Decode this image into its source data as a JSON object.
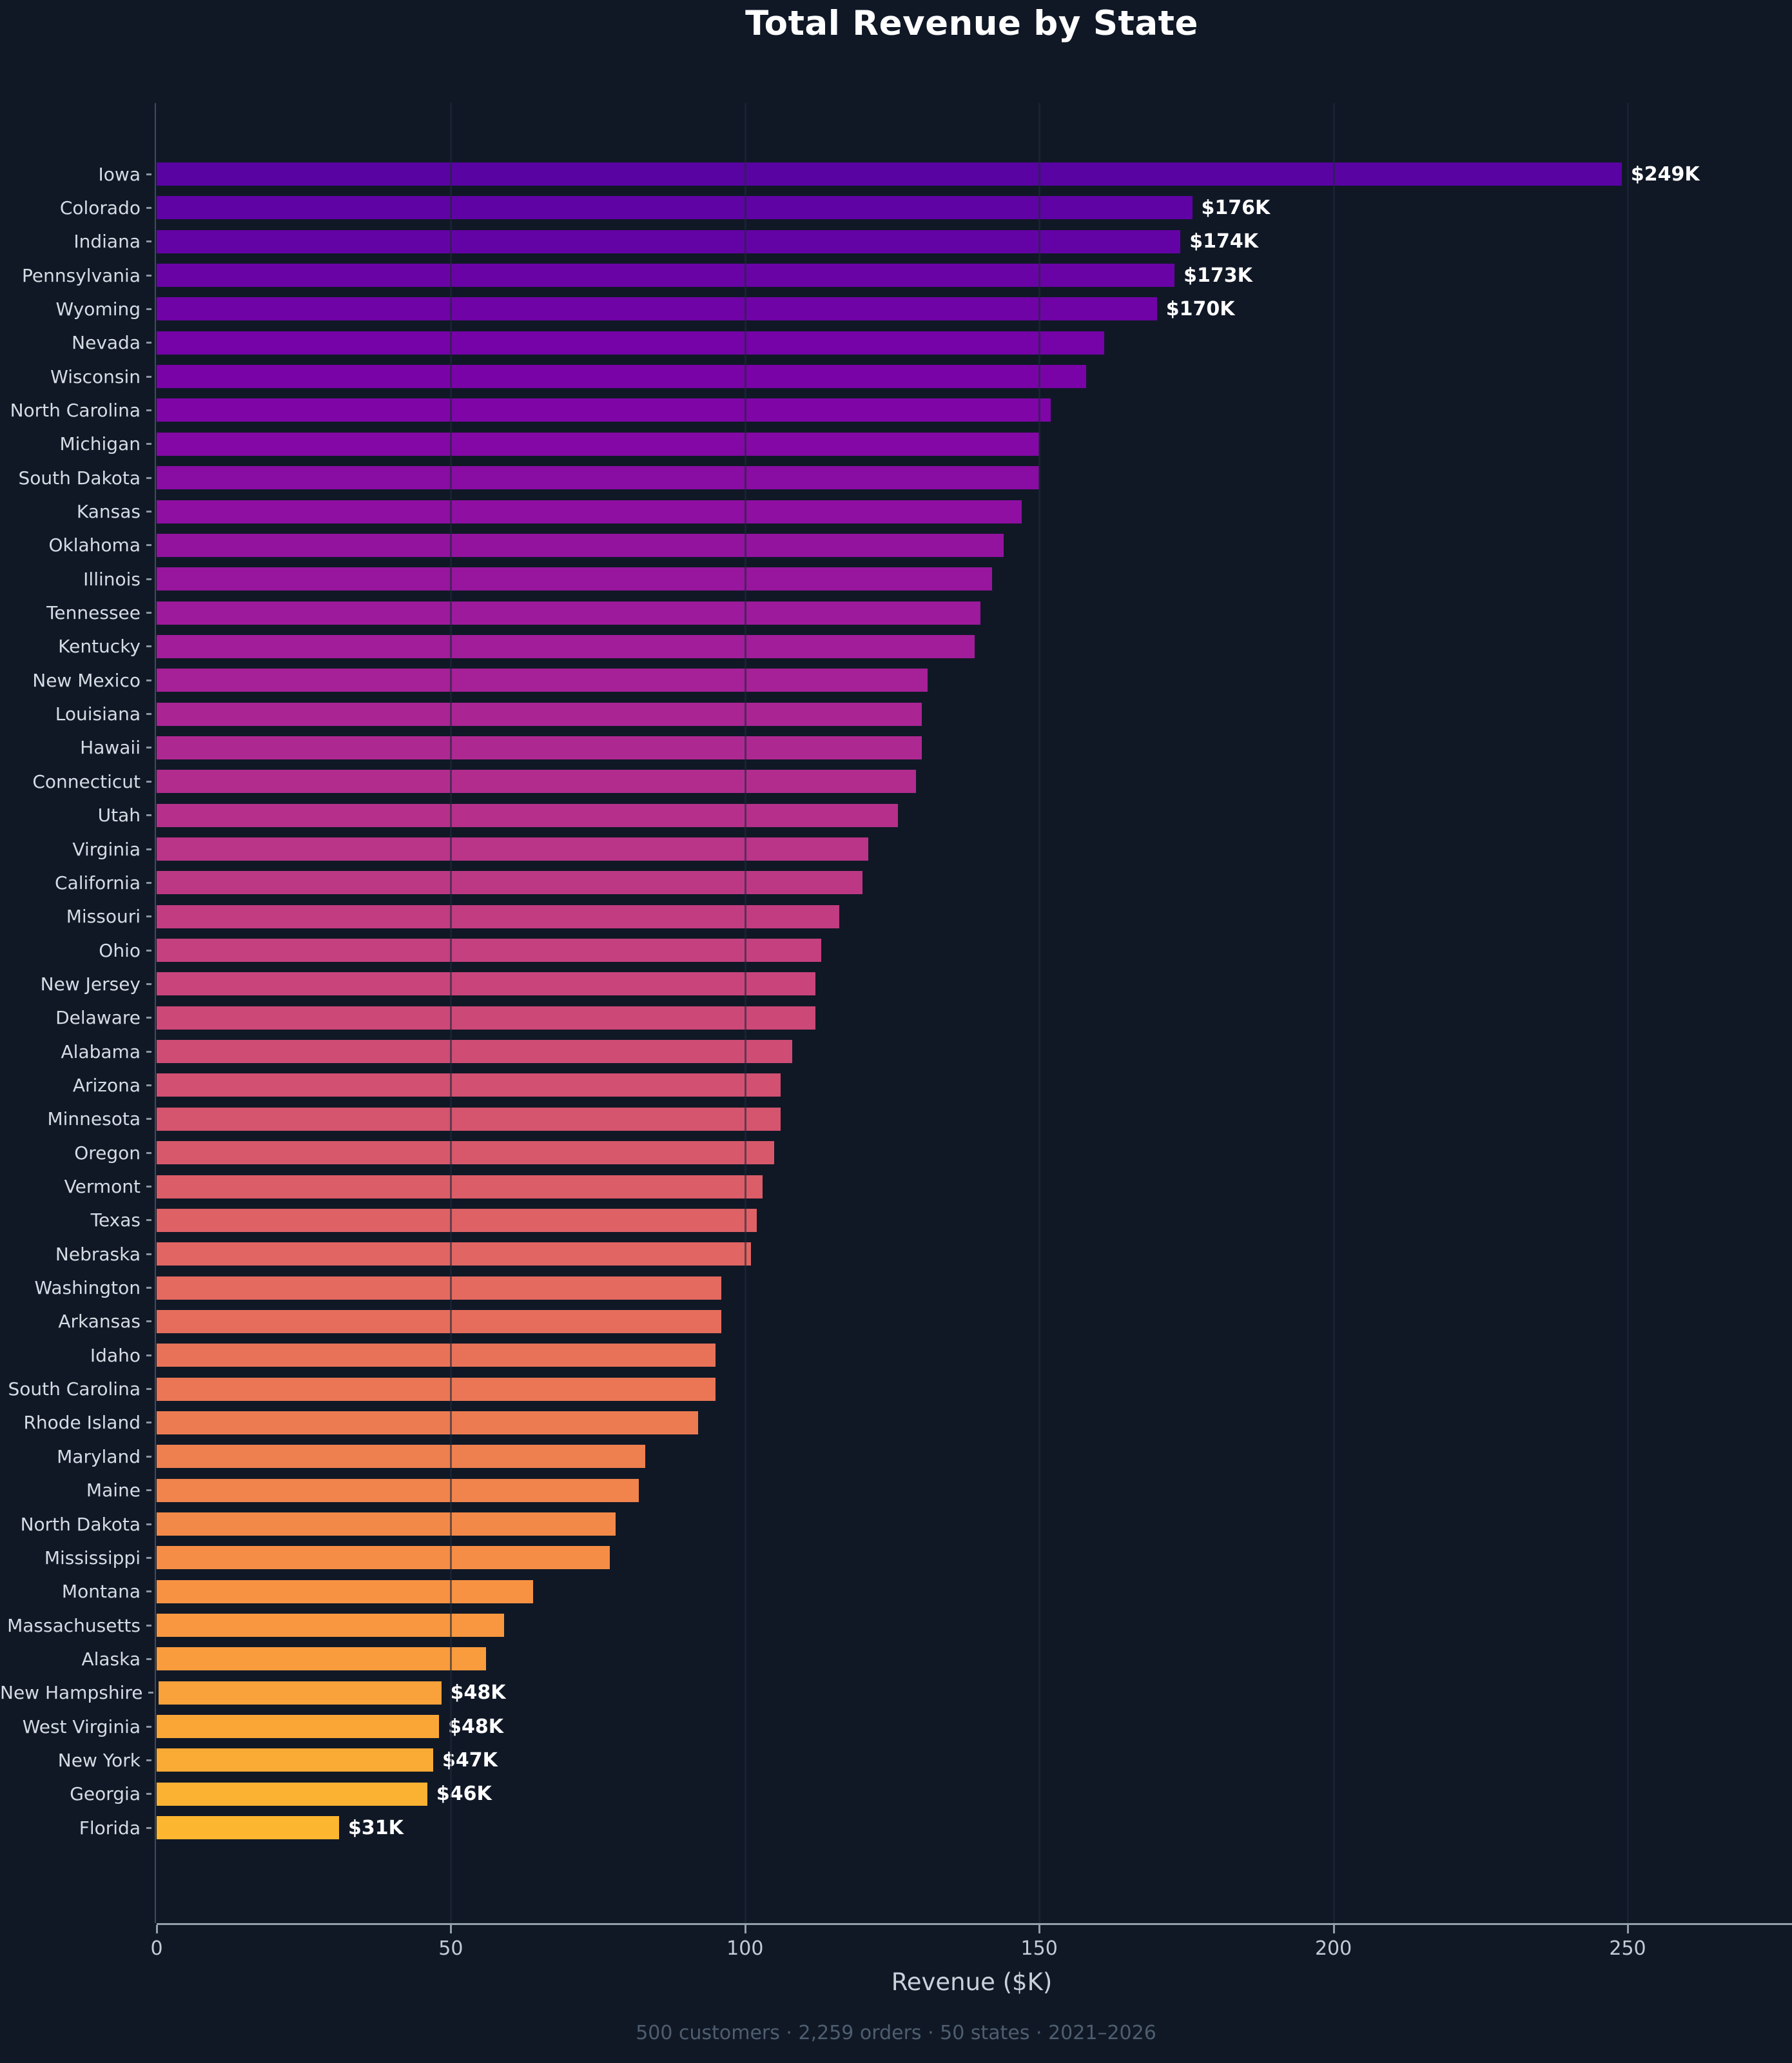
{
  "page": {
    "background": "#101826",
    "title": "Total Revenue by State",
    "footer": "500 customers · 2,259 orders · 50 states · 2021–2026"
  },
  "chart_data": {
    "type": "bar",
    "orientation": "horizontal",
    "title": "Total Revenue by State",
    "xlabel": "Revenue ($K)",
    "x_ticks": [
      0,
      50,
      100,
      150,
      200,
      250
    ],
    "xlim": [
      0,
      277
    ],
    "grid": true,
    "legend": false,
    "colors": {
      "background": "#101826",
      "axis": "#93a1ad",
      "grid": "rgba(30,41,59,0.62)",
      "state_label": "#d5dce4",
      "tick_label": "#c3ccd5",
      "value_label": "#ffffff",
      "footer_text": "#4e5e6f"
    },
    "bars": [
      {
        "state": "Iowa",
        "value_k": 249,
        "label": "$249K",
        "color": "#5903A3"
      },
      {
        "state": "Colorado",
        "value_k": 176,
        "label": "$176K",
        "color": "#5F03A4"
      },
      {
        "state": "Indiana",
        "value_k": 174,
        "label": "$174K",
        "color": "#6403A5"
      },
      {
        "state": "Pennsylvania",
        "value_k": 173,
        "label": "$173K",
        "color": "#6A03A5"
      },
      {
        "state": "Wyoming",
        "value_k": 170,
        "label": "$170K",
        "color": "#6F03A6"
      },
      {
        "state": "Nevada",
        "value_k": 161,
        "label": null,
        "color": "#7503A7"
      },
      {
        "state": "Wisconsin",
        "value_k": 158,
        "label": null,
        "color": "#7A03A8"
      },
      {
        "state": "North Carolina",
        "value_k": 152,
        "label": null,
        "color": "#7F05A7"
      },
      {
        "state": "Michigan",
        "value_k": 150,
        "label": null,
        "color": "#8408A5"
      },
      {
        "state": "South Dakota",
        "value_k": 150,
        "label": null,
        "color": "#890CA3"
      },
      {
        "state": "Kansas",
        "value_k": 147,
        "label": null,
        "color": "#8E0FA1"
      },
      {
        "state": "Oklahoma",
        "value_k": 144,
        "label": null,
        "color": "#93139F"
      },
      {
        "state": "Illinois",
        "value_k": 142,
        "label": null,
        "color": "#97169D"
      },
      {
        "state": "Tennessee",
        "value_k": 140,
        "label": null,
        "color": "#9C1A9B"
      },
      {
        "state": "Kentucky",
        "value_k": 139,
        "label": null,
        "color": "#A11D99"
      },
      {
        "state": "New Mexico",
        "value_k": 131,
        "label": null,
        "color": "#A62097"
      },
      {
        "state": "Louisiana",
        "value_k": 130,
        "label": null,
        "color": "#AA2494"
      },
      {
        "state": "Hawaii",
        "value_k": 130,
        "label": null,
        "color": "#AE2891"
      },
      {
        "state": "Connecticut",
        "value_k": 129,
        "label": null,
        "color": "#B22C8E"
      },
      {
        "state": "Utah",
        "value_k": 126,
        "label": null,
        "color": "#B6308B"
      },
      {
        "state": "Virginia",
        "value_k": 121,
        "label": null,
        "color": "#BA3488"
      },
      {
        "state": "California",
        "value_k": 120,
        "label": null,
        "color": "#BD3884"
      },
      {
        "state": "Missouri",
        "value_k": 116,
        "label": null,
        "color": "#C13C81"
      },
      {
        "state": "Ohio",
        "value_k": 113,
        "label": null,
        "color": "#C5407E"
      },
      {
        "state": "New Jersey",
        "value_k": 112,
        "label": null,
        "color": "#C9447B"
      },
      {
        "state": "Delaware",
        "value_k": 112,
        "label": null,
        "color": "#CC4877"
      },
      {
        "state": "Alabama",
        "value_k": 108,
        "label": null,
        "color": "#CF4C74"
      },
      {
        "state": "Arizona",
        "value_k": 106,
        "label": null,
        "color": "#D25071"
      },
      {
        "state": "Minnesota",
        "value_k": 106,
        "label": null,
        "color": "#D5546E"
      },
      {
        "state": "Oregon",
        "value_k": 105,
        "label": null,
        "color": "#D8586B"
      },
      {
        "state": "Vermont",
        "value_k": 103,
        "label": null,
        "color": "#DB5D68"
      },
      {
        "state": "Texas",
        "value_k": 102,
        "label": null,
        "color": "#DE6165"
      },
      {
        "state": "Nebraska",
        "value_k": 101,
        "label": null,
        "color": "#E16562"
      },
      {
        "state": "Washington",
        "value_k": 96,
        "label": null,
        "color": "#E4695F"
      },
      {
        "state": "Arkansas",
        "value_k": 96,
        "label": null,
        "color": "#E66D5C"
      },
      {
        "state": "Idaho",
        "value_k": 95,
        "label": null,
        "color": "#E87258"
      },
      {
        "state": "South Carolina",
        "value_k": 95,
        "label": null,
        "color": "#EA7655"
      },
      {
        "state": "Rhode Island",
        "value_k": 92,
        "label": null,
        "color": "#EC7B52"
      },
      {
        "state": "Maryland",
        "value_k": 83,
        "label": null,
        "color": "#EE7F4F"
      },
      {
        "state": "Maine",
        "value_k": 82,
        "label": null,
        "color": "#F1844C"
      },
      {
        "state": "North Dakota",
        "value_k": 78,
        "label": null,
        "color": "#F38949"
      },
      {
        "state": "Mississippi",
        "value_k": 77,
        "label": null,
        "color": "#F58D46"
      },
      {
        "state": "Montana",
        "value_k": 64,
        "label": null,
        "color": "#F79243"
      },
      {
        "state": "Massachusetts",
        "value_k": 59,
        "label": null,
        "color": "#F89740"
      },
      {
        "state": "Alaska",
        "value_k": 56,
        "label": null,
        "color": "#F99C3D"
      },
      {
        "state": "New Hampshire",
        "value_k": 48,
        "label": "$48K",
        "color": "#F9A13A"
      },
      {
        "state": "West Virginia",
        "value_k": 48,
        "label": "$48K",
        "color": "#FAA637"
      },
      {
        "state": "New York",
        "value_k": 47,
        "label": "$47K",
        "color": "#FAAB35"
      },
      {
        "state": "Georgia",
        "value_k": 46,
        "label": "$46K",
        "color": "#FBB132"
      },
      {
        "state": "Florida",
        "value_k": 31,
        "label": "$31K",
        "color": "#FCB62F"
      }
    ],
    "footer": "500 customers · 2,259 orders · 50 states · 2021–2026"
  }
}
